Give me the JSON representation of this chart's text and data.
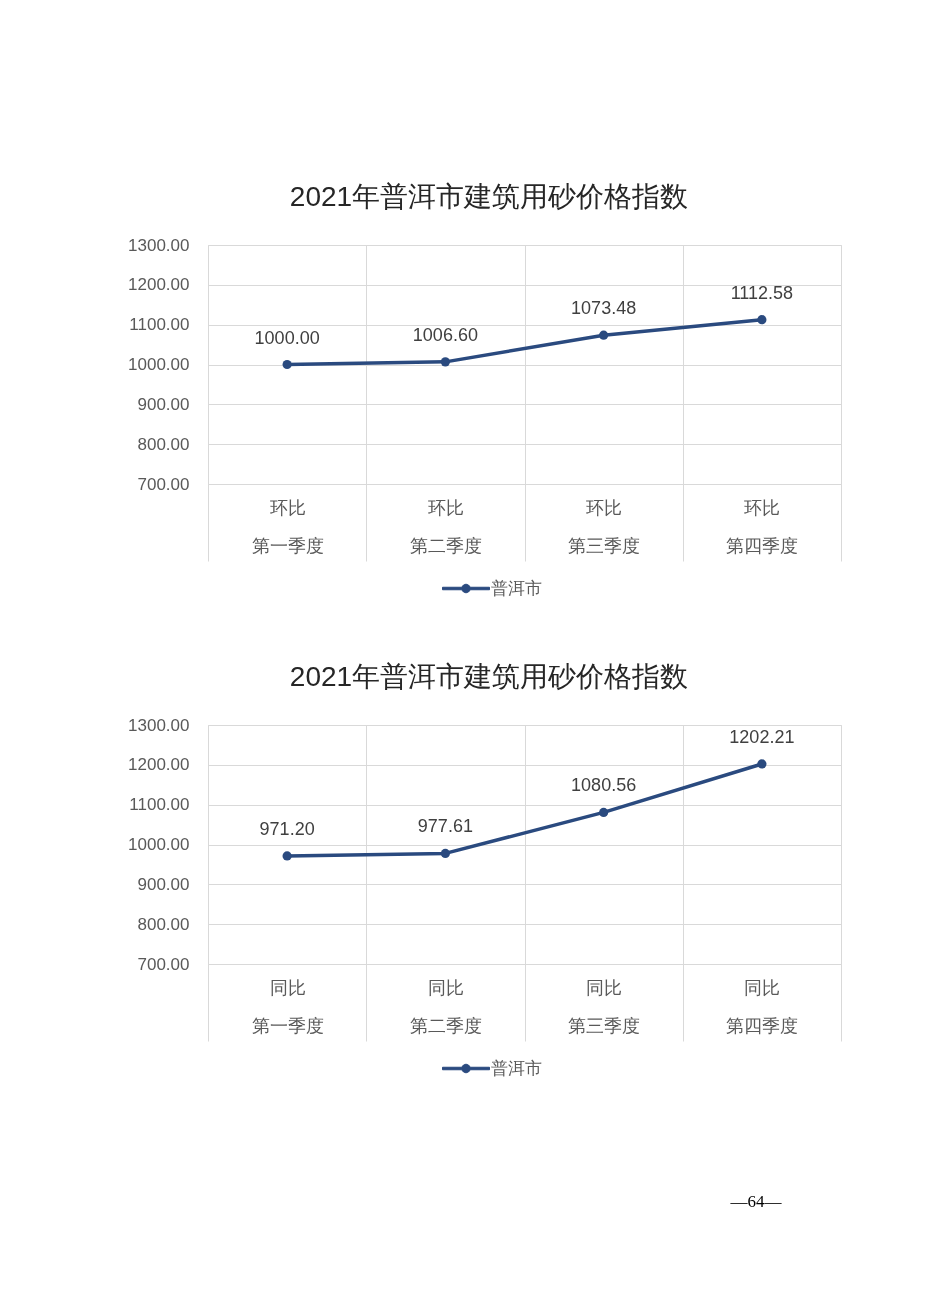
{
  "chart_data": [
    {
      "type": "line",
      "title": "2021年普洱市建筑用砂价格指数",
      "categories": [
        "环比第一季度",
        "环比第二季度",
        "环比第三季度",
        "环比第四季度"
      ],
      "series": [
        {
          "name": "普洱市",
          "color": "#2a4a7f",
          "values": [
            1000.0,
            1006.6,
            1073.48,
            1112.58
          ],
          "value_labels": [
            "1000.00",
            "1006.60",
            "1073.48",
            "1112.58"
          ]
        }
      ],
      "ylim": [
        700,
        1300
      ],
      "yticks": [
        {
          "value": 700,
          "label": "700.00"
        },
        {
          "value": 800,
          "label": "800.00"
        },
        {
          "value": 900,
          "label": "900.00"
        },
        {
          "value": 1000,
          "label": "1000.00"
        },
        {
          "value": 1100,
          "label": "1100.00"
        },
        {
          "value": 1200,
          "label": "1200.00"
        },
        {
          "value": 1300,
          "label": "1300.00"
        }
      ],
      "grid": true,
      "legend": "bottom",
      "marker": "circle",
      "line_style": "solid"
    },
    {
      "type": "line",
      "title": "2021年普洱市建筑用砂价格指数",
      "categories": [
        "同比第一季度",
        "同比第二季度",
        "同比第三季度",
        "同比第四季度"
      ],
      "series": [
        {
          "name": "普洱市",
          "color": "#2a4a7f",
          "values": [
            971.2,
            977.61,
            1080.56,
            1202.21
          ],
          "value_labels": [
            "971.20",
            "977.61",
            "1080.56",
            "1202.21"
          ]
        }
      ],
      "ylim": [
        700,
        1300
      ],
      "yticks": [
        {
          "value": 700,
          "label": "700.00"
        },
        {
          "value": 800,
          "label": "800.00"
        },
        {
          "value": 900,
          "label": "900.00"
        },
        {
          "value": 1000,
          "label": "1000.00"
        },
        {
          "value": 1100,
          "label": "1100.00"
        },
        {
          "value": 1200,
          "label": "1200.00"
        },
        {
          "value": 1300,
          "label": "1300.00"
        }
      ],
      "grid": true,
      "legend": "bottom",
      "marker": "circle",
      "line_style": "solid",
      "annotations": [
        "—64—"
      ]
    }
  ]
}
